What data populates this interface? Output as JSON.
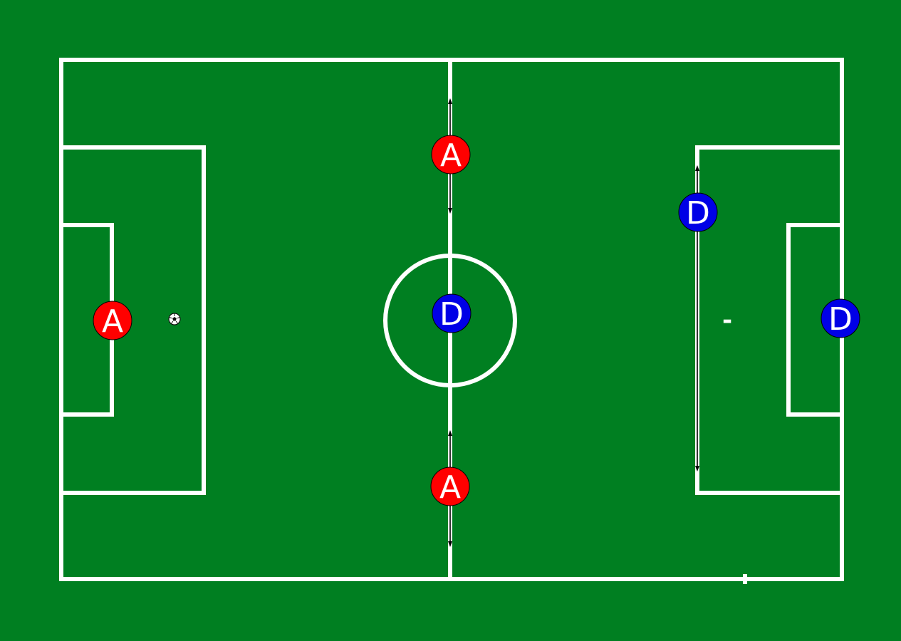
{
  "colors": {
    "grass": "#007f21",
    "lines": "#ffffff",
    "attacker": "#ff0000",
    "defender": "#0000e6",
    "arrow": "#000000"
  },
  "players": [
    {
      "role": "attacker",
      "label": "A"
    },
    {
      "role": "attacker",
      "label": "A"
    },
    {
      "role": "attacker",
      "label": "A"
    },
    {
      "role": "defender",
      "label": "D"
    },
    {
      "role": "defender",
      "label": "D"
    },
    {
      "role": "defender",
      "label": "D"
    }
  ],
  "marks": {
    "dash": "-"
  },
  "icons": {
    "ball": "soccer-ball-icon"
  }
}
